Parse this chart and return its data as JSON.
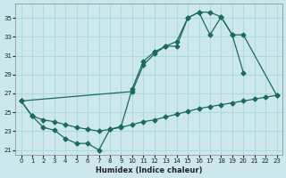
{
  "xlabel": "Humidex (Indice chaleur)",
  "bg_color": "#cce8ed",
  "line_color": "#1a6b5a",
  "grid_color": "#b0d8de",
  "xlim": [
    -0.5,
    23.5
  ],
  "ylim": [
    20.5,
    36.5
  ],
  "yticks": [
    21,
    23,
    25,
    27,
    29,
    31,
    33,
    35
  ],
  "xticks": [
    0,
    1,
    2,
    3,
    4,
    5,
    6,
    7,
    8,
    9,
    10,
    11,
    12,
    13,
    14,
    15,
    16,
    17,
    18,
    19,
    20,
    21,
    22,
    23
  ],
  "series1_x": [
    0,
    1,
    2,
    3,
    4,
    5,
    6,
    7,
    8,
    9,
    10,
    11,
    12,
    13,
    14,
    15,
    16,
    17,
    18,
    19,
    20
  ],
  "series1_y": [
    26.2,
    24.6,
    23.4,
    23.1,
    22.2,
    21.7,
    21.7,
    21.0,
    23.2,
    23.5,
    27.5,
    30.4,
    31.4,
    32.0,
    32.0,
    35.0,
    35.6,
    35.6,
    35.1,
    33.2,
    29.2
  ],
  "series2_x": [
    0,
    10,
    11,
    12,
    13,
    14,
    15,
    16,
    17,
    18,
    19,
    20,
    23
  ],
  "series2_y": [
    26.2,
    27.2,
    30.0,
    31.2,
    32.0,
    32.5,
    35.0,
    35.6,
    33.2,
    35.1,
    33.2,
    33.2,
    26.8
  ],
  "series3_x": [
    0,
    1,
    2,
    3,
    4,
    5,
    6,
    7,
    8,
    9,
    10,
    11,
    12,
    13,
    14,
    15,
    16,
    17,
    18,
    19,
    20,
    21,
    22,
    23
  ],
  "series3_y": [
    26.2,
    24.6,
    24.2,
    24.0,
    23.7,
    23.4,
    23.2,
    23.0,
    23.2,
    23.4,
    23.7,
    24.0,
    24.2,
    24.5,
    24.8,
    25.1,
    25.4,
    25.6,
    25.8,
    26.0,
    26.2,
    26.4,
    26.6,
    26.8
  ]
}
